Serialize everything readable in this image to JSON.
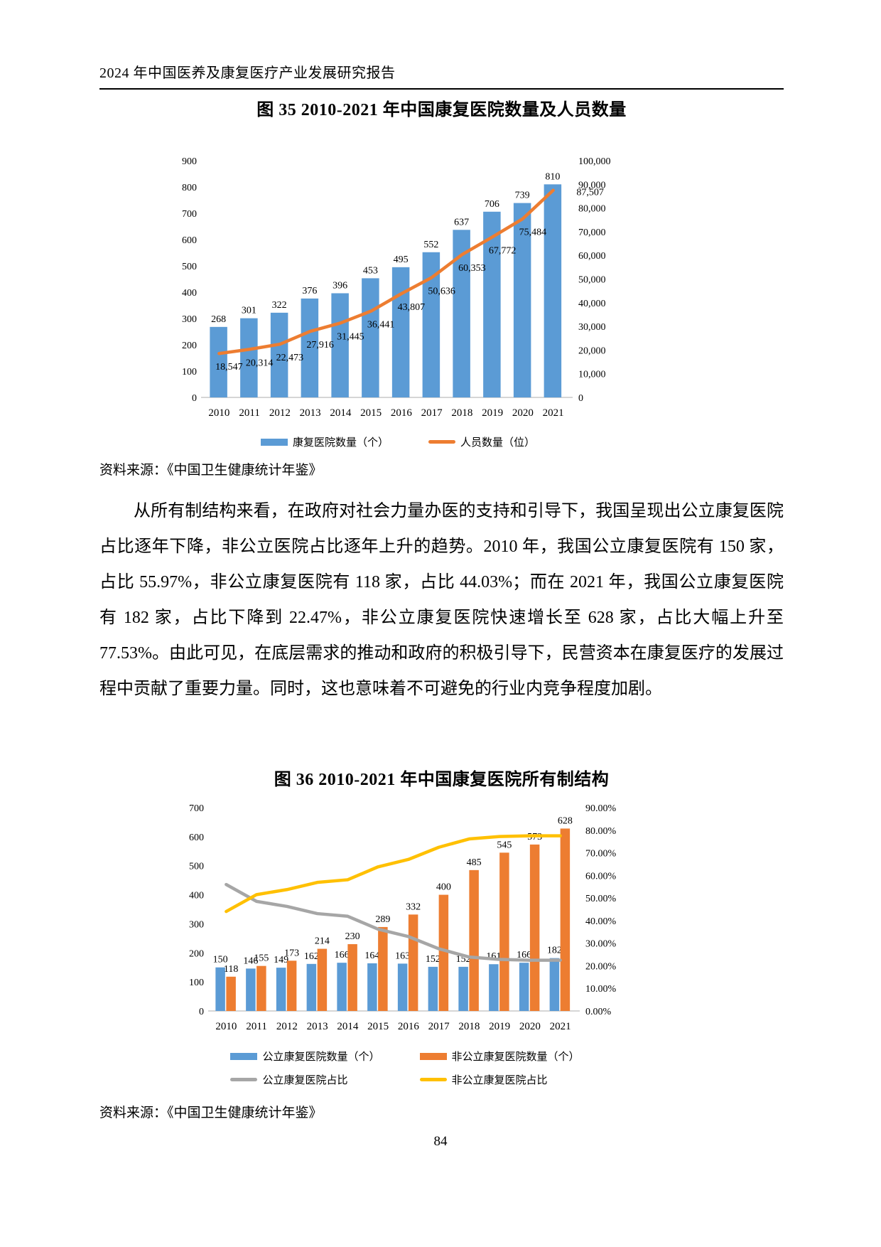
{
  "header": {
    "title": "2024 年中国医养及康复医疗产业发展研究报告"
  },
  "figure35": {
    "title": "图 35 2010-2021 年中国康复医院数量及人员数量",
    "source": "资料来源：《中国卫生健康统计年鉴》"
  },
  "body_paragraph": "从所有制结构来看，在政府对社会力量办医的支持和引导下，我国呈现出公立康复医院占比逐年下降，非公立医院占比逐年上升的趋势。2010 年，我国公立康复医院有 150 家，占比 55.97%，非公立康复医院有 118 家，占比 44.03%；而在 2021 年，我国公立康复医院有 182 家，占比下降到 22.47%，非公立康复医院快速增长至 628 家，占比大幅上升至 77.53%。由此可见，在底层需求的推动和政府的积极引导下，民营资本在康复医疗的发展过程中贡献了重要力量。同时，这也意味着不可避免的行业内竞争程度加剧。",
  "figure36": {
    "title": "图 36 2010-2021 年中国康复医院所有制结构",
    "source": "资料来源：《中国卫生健康统计年鉴》"
  },
  "footer": {
    "page_number": "84"
  },
  "chart_data": [
    {
      "type": "combo",
      "title": "图 35 2010-2021 年中国康复医院数量及人员数量",
      "categories": [
        "2010",
        "2011",
        "2012",
        "2013",
        "2014",
        "2015",
        "2016",
        "2017",
        "2018",
        "2019",
        "2020",
        "2021"
      ],
      "series": [
        {
          "name": "康复医院数量（个）",
          "kind": "bar",
          "axis": "left",
          "color": "#5B9BD5",
          "values": [
            268,
            301,
            322,
            376,
            396,
            453,
            495,
            552,
            637,
            706,
            739,
            810
          ]
        },
        {
          "name": "人员数量（位）",
          "kind": "line",
          "axis": "right",
          "color": "#ED7D31",
          "values": [
            18547,
            20314,
            22473,
            27916,
            31445,
            36441,
            43807,
            50636,
            60353,
            67772,
            75484,
            87507
          ],
          "labels": [
            "18,547",
            "20,314",
            "22,473",
            "27,916",
            "31,445",
            "36,441",
            "43,807",
            "50,636",
            "60,353",
            "67,772",
            "75,484",
            "87,507"
          ]
        }
      ],
      "left_axis": {
        "min": 0,
        "max": 900,
        "step": 100,
        "ticks": [
          "0",
          "100",
          "200",
          "300",
          "400",
          "500",
          "600",
          "700",
          "800",
          "900"
        ]
      },
      "right_axis": {
        "min": 0,
        "max": 100000,
        "step": 10000,
        "ticks": [
          "0",
          "10,000",
          "20,000",
          "30,000",
          "40,000",
          "50,000",
          "60,000",
          "70,000",
          "80,000",
          "90,000",
          "100,000"
        ]
      },
      "legend_position": "bottom",
      "grid": false
    },
    {
      "type": "combo",
      "title": "图 36 2010-2021 年中国康复医院所有制结构",
      "categories": [
        "2010",
        "2011",
        "2012",
        "2013",
        "2014",
        "2015",
        "2016",
        "2017",
        "2018",
        "2019",
        "2020",
        "2021"
      ],
      "series": [
        {
          "name": "公立康复医院数量（个）",
          "kind": "bar",
          "axis": "left",
          "color": "#5B9BD5",
          "values": [
            150,
            146,
            149,
            162,
            166,
            164,
            163,
            152,
            152,
            161,
            166,
            182
          ]
        },
        {
          "name": "非公立康复医院数量（个）",
          "kind": "bar",
          "axis": "left",
          "color": "#ED7D31",
          "values": [
            118,
            155,
            173,
            214,
            230,
            289,
            332,
            400,
            485,
            545,
            573,
            628
          ]
        },
        {
          "name": "公立康复医院占比",
          "kind": "line",
          "axis": "right",
          "color": "#A6A6A6",
          "values": [
            55.97,
            48.5,
            46.27,
            43.09,
            41.92,
            36.2,
            32.93,
            27.54,
            23.86,
            22.8,
            22.46,
            22.47
          ]
        },
        {
          "name": "非公立康复医院占比",
          "kind": "line",
          "axis": "right",
          "color": "#FFC000",
          "values": [
            44.03,
            51.5,
            53.73,
            56.91,
            58.08,
            63.8,
            67.07,
            72.46,
            76.14,
            77.2,
            77.54,
            77.53
          ]
        }
      ],
      "left_axis": {
        "min": 0,
        "max": 700,
        "step": 100,
        "ticks": [
          "0",
          "100",
          "200",
          "300",
          "400",
          "500",
          "600",
          "700"
        ]
      },
      "right_axis": {
        "min": 0,
        "max": 90,
        "step": 10,
        "ticks": [
          "0.00%",
          "10.00%",
          "20.00%",
          "30.00%",
          "40.00%",
          "50.00%",
          "60.00%",
          "70.00%",
          "80.00%",
          "90.00%"
        ]
      },
      "legend_position": "bottom",
      "grid": false
    }
  ]
}
